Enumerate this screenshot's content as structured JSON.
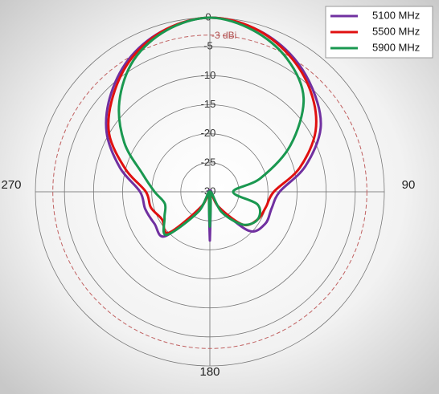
{
  "chart_data": {
    "type": "polar",
    "angles": [
      0,
      15,
      30,
      45,
      60,
      75,
      90,
      105,
      120,
      135,
      150,
      165,
      180,
      195,
      210,
      225,
      240,
      255,
      270,
      285,
      300,
      315,
      330,
      345
    ],
    "series": [
      {
        "name": "5100 MHz",
        "color": "#7030a0",
        "values": [
          0,
          -0.8,
          -2.5,
          -5,
          -8,
          -13,
          -18,
          -19,
          -19,
          -20.5,
          -27,
          -30,
          -21.6,
          -30,
          -27,
          -19.2,
          -19,
          -18.5,
          -18,
          -14,
          -9.5,
          -6,
          -3,
          -1
        ]
      },
      {
        "name": "5500 MHz",
        "color": "#e01010",
        "values": [
          0,
          -0.8,
          -2.8,
          -5.5,
          -9,
          -14,
          -19,
          -20,
          -20.5,
          -22,
          -27,
          -30,
          -25,
          -30,
          -27,
          -20,
          -20.5,
          -19.5,
          -19,
          -15,
          -10,
          -6.5,
          -3.3,
          -1
        ]
      },
      {
        "name": "5900 MHz",
        "color": "#1a9850",
        "values": [
          0,
          -1.2,
          -3.5,
          -7.2,
          -14,
          -21,
          -26,
          -21.5,
          -20.5,
          -22,
          -26,
          -30,
          -24,
          -30,
          -26,
          -19.5,
          -21,
          -22,
          -20.5,
          -18,
          -13,
          -8,
          -3.8,
          -1.2
        ]
      }
    ],
    "rlim": [
      -30,
      0
    ],
    "rticks": [
      0,
      -5,
      -10,
      -15,
      -20,
      -25,
      -30
    ],
    "reference": {
      "value": -3,
      "label": "-3 dBi"
    },
    "theta_ticks": [
      90,
      180,
      270
    ],
    "legend": "upper right"
  }
}
